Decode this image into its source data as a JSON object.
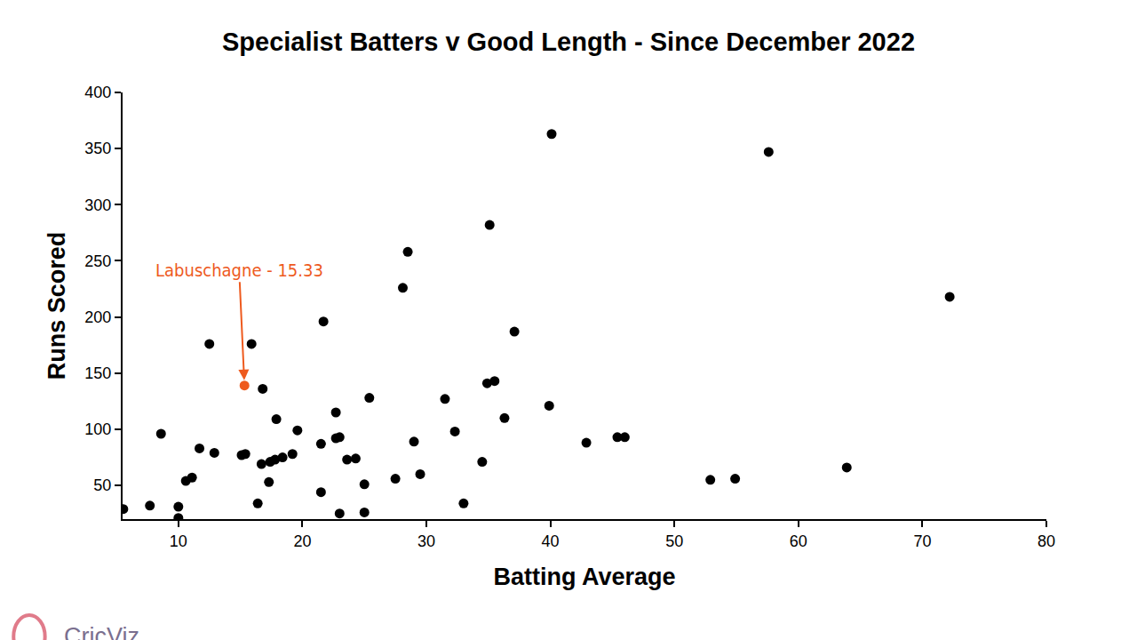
{
  "chart_data": {
    "type": "scatter",
    "title": "Specialist Batters v Good Length - Since December 2022",
    "x_label": "Batting Average",
    "y_label": "Runs Scored",
    "logo": "CricViz",
    "x": [
      5.56,
      7.7,
      8.6,
      10,
      10,
      10.6,
      11.1,
      11.7,
      12.5,
      12.9,
      15.33,
      15.1,
      15.4,
      15.9,
      16.4,
      16.7,
      16.8,
      17.3,
      17.4,
      17.8,
      17.9,
      18.4,
      19.2,
      19.6,
      21.5,
      21.5,
      21.7,
      22.7,
      22.7,
      23.0,
      23.0,
      23.6,
      24.3,
      25.0,
      25.0,
      25.4,
      27.5,
      28.1,
      28.5,
      29.0,
      29.5,
      31.5,
      32.3,
      33.0,
      34.5,
      34.9,
      35.1,
      35.5,
      36.3,
      37.1,
      39.9,
      40.1,
      42.9,
      45.4,
      46.0,
      52.9,
      54.9,
      57.6,
      63.9,
      72.2
    ],
    "values": [
      29,
      32,
      96,
      31,
      21,
      54,
      57,
      83,
      176,
      79,
      139,
      77,
      78,
      176,
      34,
      69,
      136,
      53,
      71,
      73,
      109,
      75,
      78,
      99,
      87,
      44,
      196,
      115,
      92,
      93,
      25,
      73,
      74,
      51,
      26,
      128,
      56,
      226,
      258,
      89,
      60,
      127,
      98,
      34,
      71,
      141,
      282,
      143,
      110,
      187,
      121,
      363,
      88,
      93,
      93,
      55,
      56,
      347,
      66,
      218
    ],
    "colors": [
      "#000000",
      "#000000",
      "#000000",
      "#000000",
      "#000000",
      "#000000",
      "#000000",
      "#000000",
      "#000000",
      "#000000",
      "#ee5a1e",
      "#000000",
      "#000000",
      "#000000",
      "#000000",
      "#000000",
      "#000000",
      "#000000",
      "#000000",
      "#000000",
      "#000000",
      "#000000",
      "#000000",
      "#000000",
      "#000000",
      "#000000",
      "#000000",
      "#000000",
      "#000000",
      "#000000",
      "#000000",
      "#000000",
      "#000000",
      "#000000",
      "#000000",
      "#000000",
      "#000000",
      "#000000",
      "#000000",
      "#000000",
      "#000000",
      "#000000",
      "#000000",
      "#000000",
      "#000000",
      "#000000",
      "#000000",
      "#000000",
      "#000000",
      "#000000",
      "#000000",
      "#000000",
      "#000000",
      "#000000",
      "#000000",
      "#000000",
      "#000000",
      "#000000",
      "#000000",
      "#000000"
    ],
    "marker": "circle",
    "annotations": [
      {
        "text": "Labuschagne - 15.33",
        "x": 15.33,
        "y": 139,
        "color": "#ee5a1e"
      }
    ],
    "xlim": [
      5.5,
      80
    ],
    "xticks": [
      10,
      20,
      30,
      40,
      50,
      60,
      70,
      80
    ],
    "ylim": [
      20,
      400
    ],
    "yticks": [
      50,
      100,
      150,
      200,
      250,
      300,
      350,
      400
    ],
    "grid": false
  }
}
